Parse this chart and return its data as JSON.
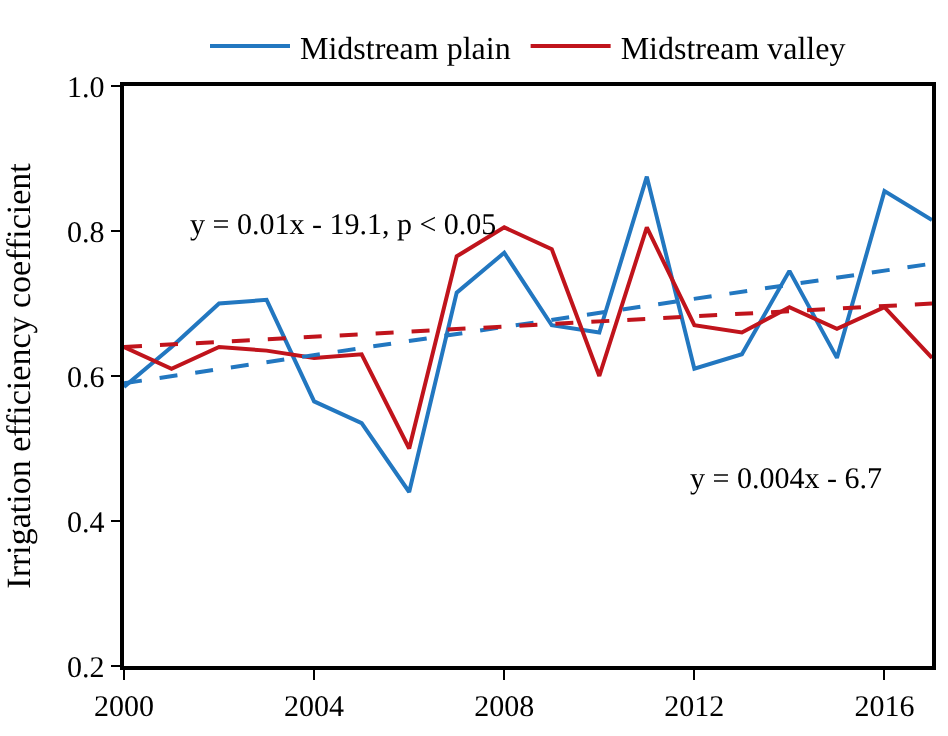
{
  "chart_data": {
    "type": "line",
    "ylabel": "Irrigation efficiency coefficient",
    "x": [
      2000,
      2001,
      2002,
      2003,
      2004,
      2005,
      2006,
      2007,
      2008,
      2009,
      2010,
      2011,
      2012,
      2013,
      2014,
      2015,
      2016,
      2017
    ],
    "series": [
      {
        "name": "Midstream plain",
        "color": "#2277c0",
        "values": [
          0.585,
          0.64,
          0.7,
          0.705,
          0.565,
          0.535,
          0.44,
          0.715,
          0.77,
          0.67,
          0.66,
          0.875,
          0.61,
          0.63,
          0.745,
          0.625,
          0.855,
          0.815
        ]
      },
      {
        "name": "Midstream valley",
        "color": "#c0141c",
        "values": [
          0.64,
          0.61,
          0.64,
          0.635,
          0.625,
          0.63,
          0.5,
          0.765,
          0.805,
          0.775,
          0.6,
          0.805,
          0.67,
          0.66,
          0.695,
          0.665,
          0.695,
          0.625
        ]
      },
      {
        "type": "line",
        "color": "#2277c0",
        "line_style": "dashed",
        "values": [
          0.59,
          null,
          null,
          null,
          null,
          null,
          null,
          null,
          null,
          null,
          null,
          null,
          null,
          null,
          null,
          null,
          null,
          0.755
        ]
      },
      {
        "type": "line",
        "color": "#c0141c",
        "line_style": "dashed",
        "values": [
          0.64,
          null,
          null,
          null,
          null,
          null,
          null,
          null,
          null,
          null,
          null,
          null,
          null,
          null,
          null,
          null,
          null,
          0.7
        ]
      }
    ],
    "xlim": [
      2000,
      2017
    ],
    "xticks": [
      2000,
      2004,
      2008,
      2012,
      2016
    ],
    "ylim": [
      0.2,
      1.0
    ],
    "yticks": [
      0.2,
      0.4,
      0.6,
      0.8,
      {
        "value": 1.0,
        "label": "1.0"
      }
    ],
    "annotations": [
      "y = 0.01x - 19.1, p < 0.05",
      "y = 0.004x - 6.7"
    ],
    "grid": false,
    "legend": "top",
    "marker": "none",
    "line_style": "solid"
  }
}
